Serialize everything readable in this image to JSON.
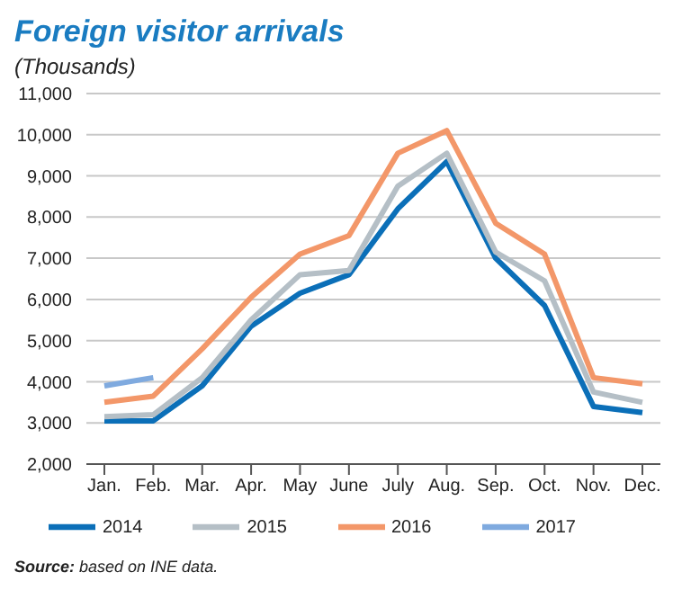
{
  "chart_data": {
    "type": "line",
    "title": "Foreign visitor arrivals",
    "subtitle": "(Thousands)",
    "categories": [
      "Jan.",
      "Feb.",
      "Mar.",
      "Apr.",
      "May",
      "June",
      "July",
      "Aug.",
      "Sep.",
      "Oct.",
      "Nov.",
      "Dec."
    ],
    "series": [
      {
        "name": "2014",
        "color": "#0b6fb8",
        "values": [
          3050,
          3050,
          3900,
          5350,
          6150,
          6600,
          8200,
          9350,
          7000,
          5850,
          3400,
          3250
        ]
      },
      {
        "name": "2015",
        "color": "#b5bfc6",
        "values": [
          3150,
          3200,
          4100,
          5500,
          6600,
          6700,
          8750,
          9550,
          7150,
          6450,
          3750,
          3500
        ]
      },
      {
        "name": "2016",
        "color": "#f39769",
        "values": [
          3500,
          3650,
          4800,
          6050,
          7100,
          7550,
          9550,
          10100,
          7850,
          7100,
          4100,
          3950
        ]
      },
      {
        "name": "2017",
        "color": "#7faadf",
        "values": [
          3900,
          4100,
          null,
          null,
          null,
          null,
          null,
          null,
          null,
          null,
          null,
          null
        ]
      }
    ],
    "ylim": [
      2000,
      11000
    ],
    "yticks": [
      {
        "value": 2000,
        "label": "2,000"
      },
      {
        "value": 3000,
        "label": "3,000"
      },
      {
        "value": 4000,
        "label": "4,000"
      },
      {
        "value": 5000,
        "label": "5,000"
      },
      {
        "value": 6000,
        "label": "6,000"
      },
      {
        "value": 7000,
        "label": "7,000"
      },
      {
        "value": 8000,
        "label": "8,000"
      },
      {
        "value": 9000,
        "label": "9,000"
      },
      {
        "value": 10000,
        "label": "10,000"
      },
      {
        "value": 11000,
        "label": "11,000"
      }
    ],
    "grid": "y",
    "legend": "bottom",
    "marker": "none",
    "line_style": "solid",
    "annotations": [
      "Source: based on INE data."
    ]
  }
}
